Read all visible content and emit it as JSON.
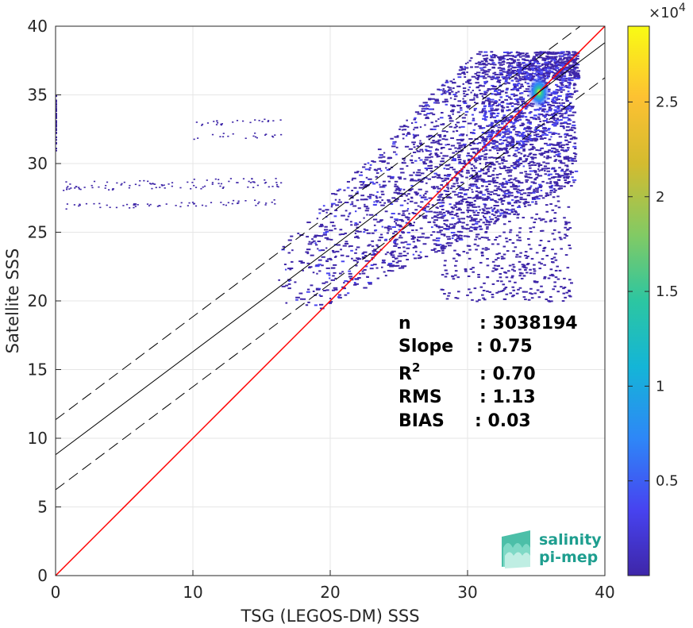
{
  "chart_data": {
    "type": "heatmap",
    "title": "",
    "xlabel": "TSG (LEGOS-DM) SSS",
    "ylabel": "Satellite SSS",
    "xlim": [
      0,
      40
    ],
    "ylim": [
      0,
      40
    ],
    "xticks": [
      0,
      10,
      20,
      30,
      40
    ],
    "yticks": [
      0,
      5,
      10,
      15,
      20,
      25,
      30,
      35,
      40
    ],
    "grid": true,
    "colorbar": {
      "range": [
        0,
        29000
      ],
      "ticks": [
        0.5,
        1,
        1.5,
        2,
        2.5
      ],
      "tick_labels": [
        "0.5",
        "1",
        "1.5",
        "2",
        "2.5"
      ],
      "multiplier": "×10",
      "multiplier_exponent": "4",
      "colormap": "parula",
      "colors": [
        "#3e26a8",
        "#4743f0",
        "#2e87f7",
        "#14b5d7",
        "#2cc6a1",
        "#82ca64",
        "#d4bb2f",
        "#fdc132",
        "#f9fb14"
      ]
    },
    "lines": [
      {
        "name": "identity",
        "color": "#ff0000",
        "slope": 1.0,
        "intercept": 0.0
      },
      {
        "name": "fit",
        "color": "#000000",
        "slope": 0.75,
        "intercept": 8.8
      },
      {
        "name": "fit_upper",
        "color": "#000000",
        "dashed": true,
        "slope": 0.75,
        "intercept": 11.35
      },
      {
        "name": "fit_lower",
        "color": "#000000",
        "dashed": true,
        "slope": 0.75,
        "intercept": 6.25
      }
    ],
    "density_peak": {
      "x": 35.2,
      "y": 35.2,
      "count": 29000
    },
    "density_regions": [
      {
        "x": [
          16,
          40
        ],
        "y": [
          20,
          40
        ],
        "level": "low"
      },
      {
        "x": [
          30,
          37.5
        ],
        "y": [
          30,
          37.5
        ],
        "level": "medium"
      }
    ],
    "stats": [
      {
        "label": "n",
        "value": ": 3038194"
      },
      {
        "label": "Slope",
        "value": ": 0.75"
      },
      {
        "label": "R",
        "superscript": "2",
        "value": ": 0.70"
      },
      {
        "label": "RMS",
        "value": ": 1.13"
      },
      {
        "label": "BIAS",
        "value": ": 0.03"
      }
    ]
  },
  "logo": {
    "line1": "salinity",
    "line2": "pi-mep",
    "color": "#1e9e8f"
  }
}
